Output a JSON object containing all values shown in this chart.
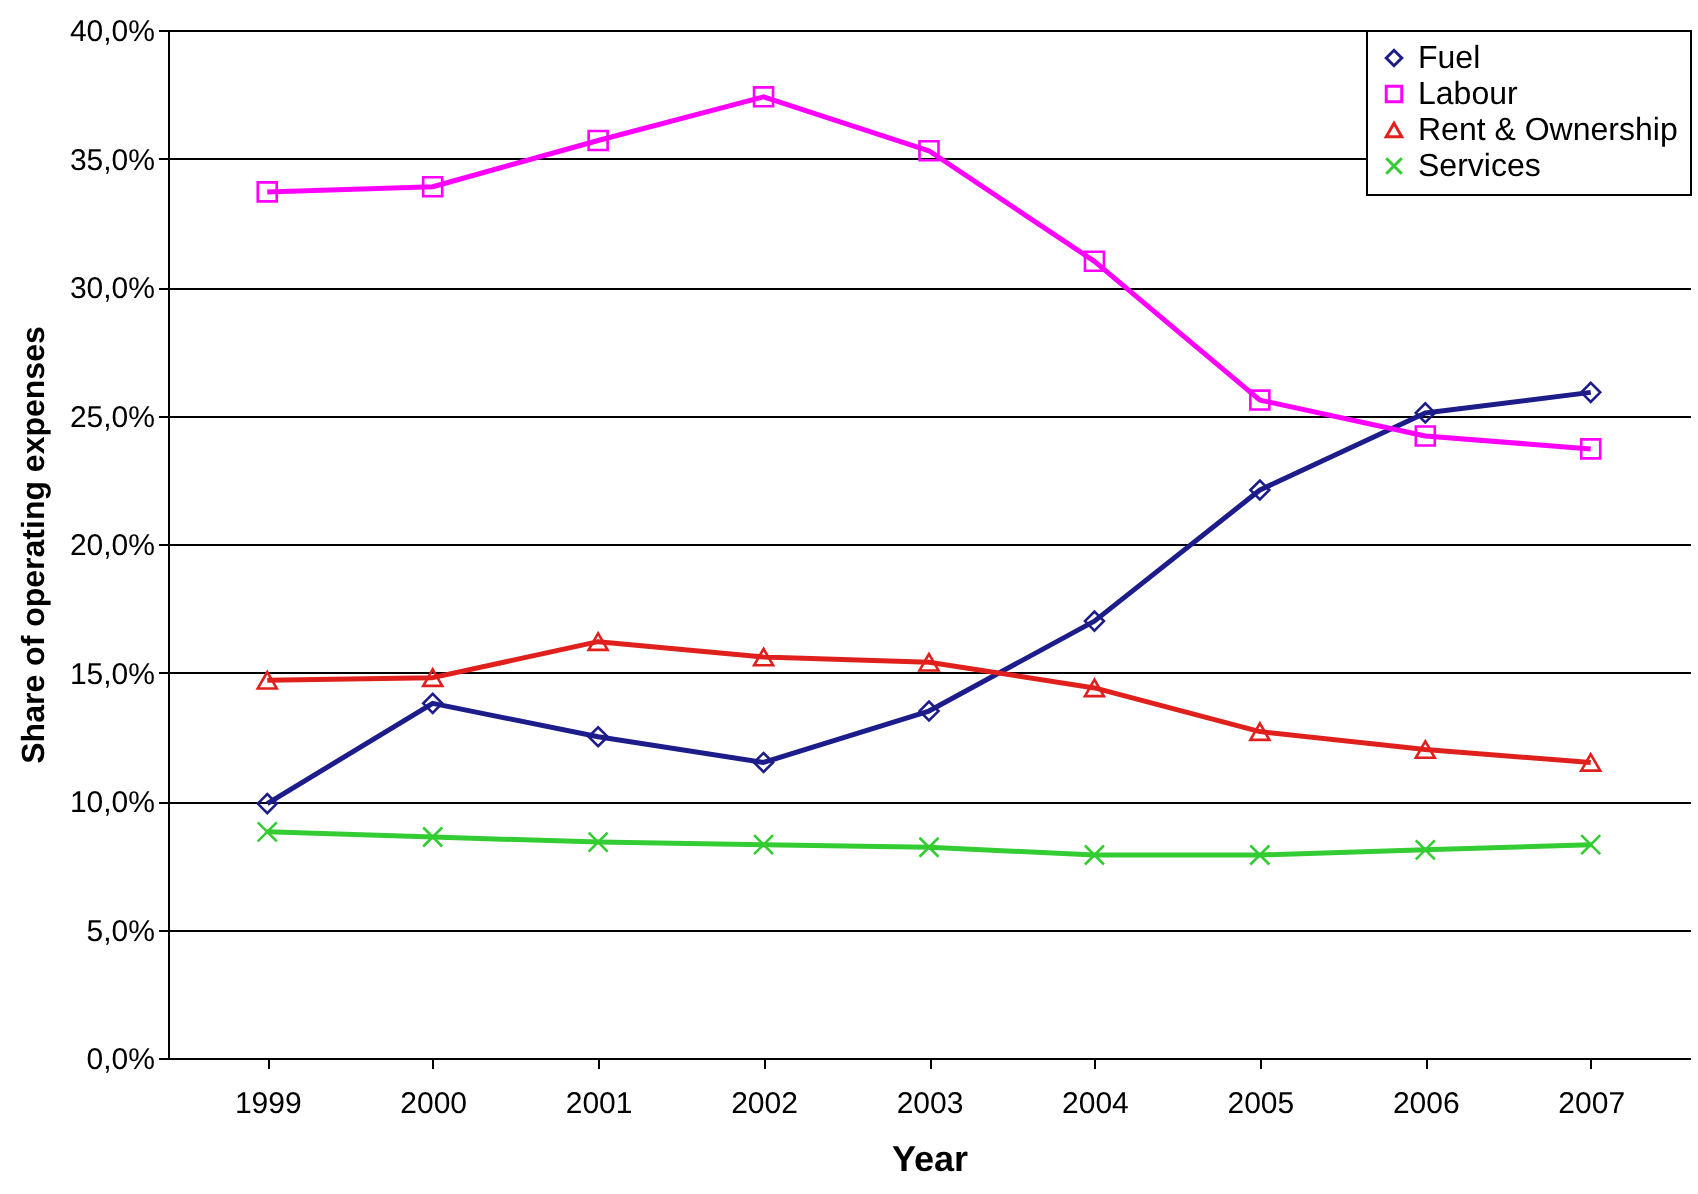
{
  "chart_data": {
    "type": "line",
    "xlabel": "Year",
    "ylabel": "Share of operating expenses",
    "categories": [
      "1999",
      "2000",
      "2001",
      "2002",
      "2003",
      "2004",
      "2005",
      "2006",
      "2007"
    ],
    "series": [
      {
        "name": "Fuel",
        "color": "#1c1c8a",
        "marker": "diamond",
        "values": [
          9.9,
          13.8,
          12.5,
          11.5,
          13.5,
          17.0,
          22.1,
          25.1,
          25.9
        ]
      },
      {
        "name": "Labour",
        "color": "#ff00ff",
        "marker": "square",
        "values": [
          33.7,
          33.9,
          35.7,
          37.4,
          35.3,
          31.0,
          25.6,
          24.2,
          23.7
        ]
      },
      {
        "name": "Rent & Ownership",
        "color": "#e0201c",
        "marker": "triangle",
        "values": [
          14.7,
          14.8,
          16.2,
          15.6,
          15.4,
          14.4,
          12.7,
          12.0,
          11.5
        ]
      },
      {
        "name": "Services",
        "color": "#33cc33",
        "marker": "cross",
        "values": [
          8.8,
          8.6,
          8.4,
          8.3,
          8.2,
          7.9,
          7.9,
          8.1,
          8.3
        ]
      }
    ],
    "ylim": [
      0,
      40
    ],
    "yticks": [
      {
        "value": 0,
        "label": "0,0%"
      },
      {
        "value": 5,
        "label": "5,0%"
      },
      {
        "value": 10,
        "label": "10,0%"
      },
      {
        "value": 15,
        "label": "15,0%"
      },
      {
        "value": 20,
        "label": "20,0%"
      },
      {
        "value": 25,
        "label": "25,0%"
      },
      {
        "value": 30,
        "label": "30,0%"
      },
      {
        "value": 35,
        "label": "35,0%"
      },
      {
        "value": 40,
        "label": "40,0%"
      }
    ],
    "grid": "y",
    "legend": "top right"
  }
}
